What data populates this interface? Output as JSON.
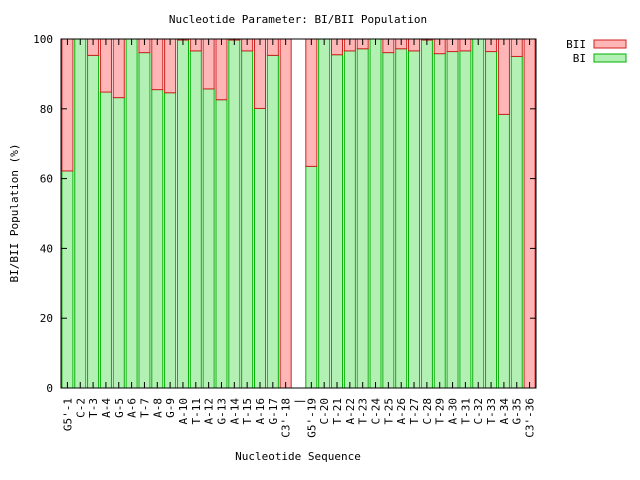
{
  "chart_data": {
    "type": "bar",
    "stacked": true,
    "title": "Nucleotide Parameter: BI/BII Population",
    "xlabel": "Nucleotide Sequence",
    "ylabel": "BI/BII Population (%)",
    "ylim": [
      0,
      100
    ],
    "yticks": [
      0,
      20,
      40,
      60,
      80,
      100
    ],
    "grid": false,
    "legend_position": "top-right, outside plot",
    "separator_label": "|",
    "categories": [
      "G5'-1",
      "C-2",
      "T-3",
      "A-4",
      "G-5",
      "A-6",
      "T-7",
      "A-8",
      "G-9",
      "A-10",
      "T-11",
      "A-12",
      "G-13",
      "A-14",
      "T-15",
      "A-16",
      "G-17",
      "C3'-18",
      "|",
      "G5'-19",
      "C-20",
      "T-21",
      "A-22",
      "T-23",
      "C-24",
      "T-25",
      "A-26",
      "T-27",
      "C-28",
      "T-29",
      "A-30",
      "T-31",
      "C-32",
      "T-33",
      "A-34",
      "G-35",
      "C3'-36"
    ],
    "series": [
      {
        "name": "BI",
        "color": "#b3f0b3",
        "edge_color": "#00b000",
        "values": [
          62.2,
          100,
          95.3,
          84.8,
          83.2,
          100,
          96.1,
          85.5,
          84.6,
          99.7,
          96.6,
          85.7,
          82.6,
          99.7,
          96.6,
          80.1,
          95.3,
          0,
          null,
          63.5,
          100,
          95.5,
          96.6,
          97.2,
          100,
          96.1,
          97.2,
          96.6,
          99.7,
          95.8,
          96.4,
          96.6,
          100,
          96.4,
          78.4,
          95.0,
          0
        ]
      },
      {
        "name": "BII",
        "color": "#ffb6b6",
        "edge_color": "#d02020",
        "values": [
          37.8,
          0,
          4.7,
          15.2,
          16.8,
          0,
          3.9,
          14.5,
          15.4,
          0.3,
          3.4,
          14.3,
          17.4,
          0.3,
          3.4,
          19.9,
          4.7,
          100,
          null,
          36.5,
          0,
          4.5,
          3.4,
          2.8,
          0,
          3.9,
          2.8,
          3.4,
          0.3,
          4.2,
          3.6,
          3.4,
          0,
          3.6,
          21.6,
          5.0,
          100
        ]
      }
    ]
  }
}
